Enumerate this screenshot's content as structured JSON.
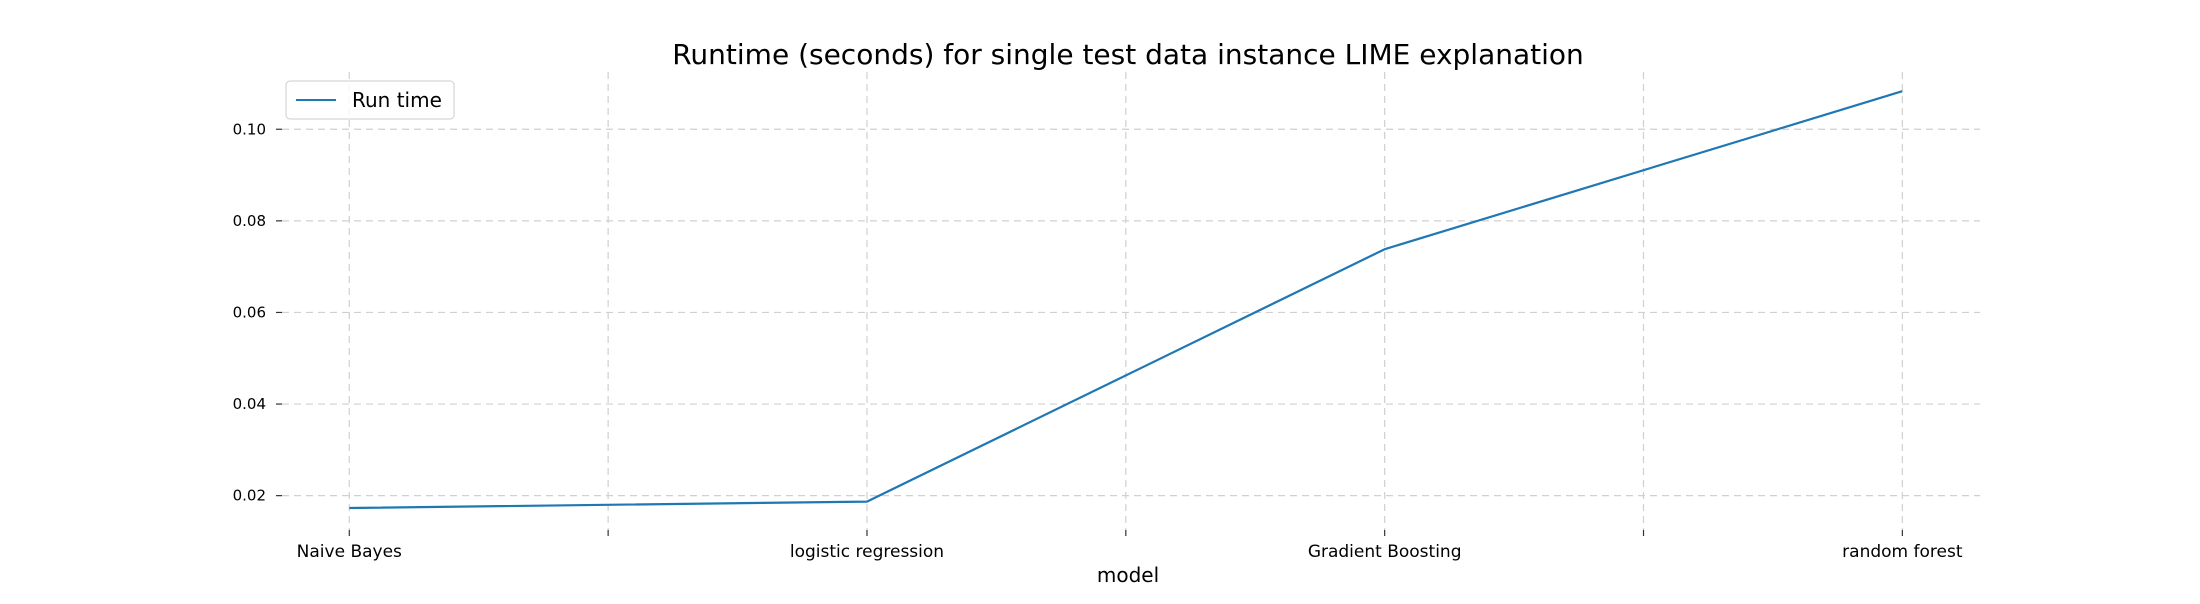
{
  "chart_data": {
    "type": "line",
    "title": "Runtime (seconds) for single test data instance LIME explanation",
    "xlabel": "model",
    "ylabel": "",
    "categories": [
      "Naive Bayes",
      "logistic regression",
      "Gradient Boosting",
      "random forest"
    ],
    "x_ticks": [
      0,
      0.5,
      1,
      1.5,
      2,
      2.5,
      3
    ],
    "y_ticks": [
      0.02,
      0.04,
      0.06,
      0.08,
      0.1
    ],
    "y_tick_labels": [
      "0.02",
      "0.04",
      "0.06",
      "0.08",
      "0.10"
    ],
    "xlim": [
      -0.13,
      3.15
    ],
    "ylim": [
      0.0125,
      0.1125
    ],
    "series": [
      {
        "name": "Run time",
        "x": [
          0,
          1,
          2,
          3
        ],
        "values": [
          0.0173,
          0.0187,
          0.0738,
          0.1083
        ],
        "color": "#1f77b4"
      }
    ],
    "grid": true,
    "grid_style": "dashed",
    "legend_position": "upper-left"
  }
}
